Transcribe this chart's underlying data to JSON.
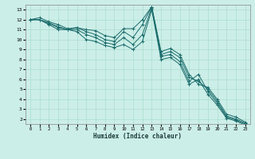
{
  "xlabel": "Humidex (Indice chaleur)",
  "bg_color": "#cceee8",
  "line_color": "#1a6b6b",
  "grid_color": "#aaddcc",
  "xlim": [
    -0.5,
    23.5
  ],
  "ylim": [
    1.5,
    13.5
  ],
  "xticks": [
    0,
    1,
    2,
    3,
    4,
    5,
    6,
    7,
    8,
    9,
    10,
    11,
    12,
    13,
    14,
    15,
    16,
    17,
    18,
    19,
    20,
    21,
    22,
    23
  ],
  "yticks": [
    2,
    3,
    4,
    5,
    6,
    7,
    8,
    9,
    10,
    11,
    12,
    13
  ],
  "line1_x": [
    0,
    1,
    2,
    3,
    4,
    5,
    6,
    7,
    8,
    9,
    10,
    11,
    12,
    13,
    14,
    15,
    16,
    17,
    18,
    19,
    20,
    21,
    22,
    23
  ],
  "line1_y": [
    12,
    12.2,
    11.8,
    11.5,
    11.1,
    11.2,
    11.0,
    10.9,
    10.4,
    10.2,
    11.1,
    11.1,
    12.0,
    13.3,
    8.8,
    9.1,
    8.5,
    6.5,
    5.5,
    5.2,
    4.0,
    2.5,
    2.2,
    1.7
  ],
  "line2_x": [
    0,
    1,
    2,
    3,
    4,
    5,
    6,
    7,
    8,
    9,
    10,
    11,
    12,
    13,
    14,
    15,
    16,
    17,
    18,
    19,
    20,
    21,
    22,
    23
  ],
  "line2_y": [
    12,
    12,
    11.7,
    11.3,
    11.0,
    11.2,
    10.8,
    10.5,
    10.0,
    9.8,
    10.8,
    10.2,
    11.5,
    13.3,
    8.5,
    8.8,
    8.2,
    6.2,
    5.8,
    5.0,
    3.8,
    2.3,
    2.0,
    1.6
  ],
  "line3_x": [
    0,
    1,
    2,
    3,
    4,
    5,
    6,
    7,
    8,
    9,
    10,
    11,
    12,
    13,
    14,
    15,
    16,
    17,
    18,
    19,
    20,
    21,
    22,
    23
  ],
  "line3_y": [
    12,
    12,
    11.6,
    11.2,
    11.0,
    11.0,
    10.5,
    10.2,
    9.7,
    9.5,
    10.2,
    9.5,
    10.5,
    13.2,
    8.3,
    8.5,
    7.8,
    5.8,
    6.5,
    4.8,
    3.6,
    2.2,
    1.9,
    1.5
  ],
  "line4_x": [
    0,
    1,
    2,
    3,
    4,
    5,
    6,
    7,
    8,
    9,
    10,
    11,
    12,
    13,
    14,
    15,
    16,
    17,
    18,
    19,
    20,
    21,
    22,
    23
  ],
  "line4_y": [
    12,
    12,
    11.5,
    11.0,
    11.0,
    10.8,
    10.0,
    9.8,
    9.4,
    9.2,
    9.5,
    9.0,
    9.8,
    13.0,
    8.0,
    8.2,
    7.5,
    5.5,
    6.0,
    4.5,
    3.4,
    2.1,
    1.8,
    1.4
  ]
}
